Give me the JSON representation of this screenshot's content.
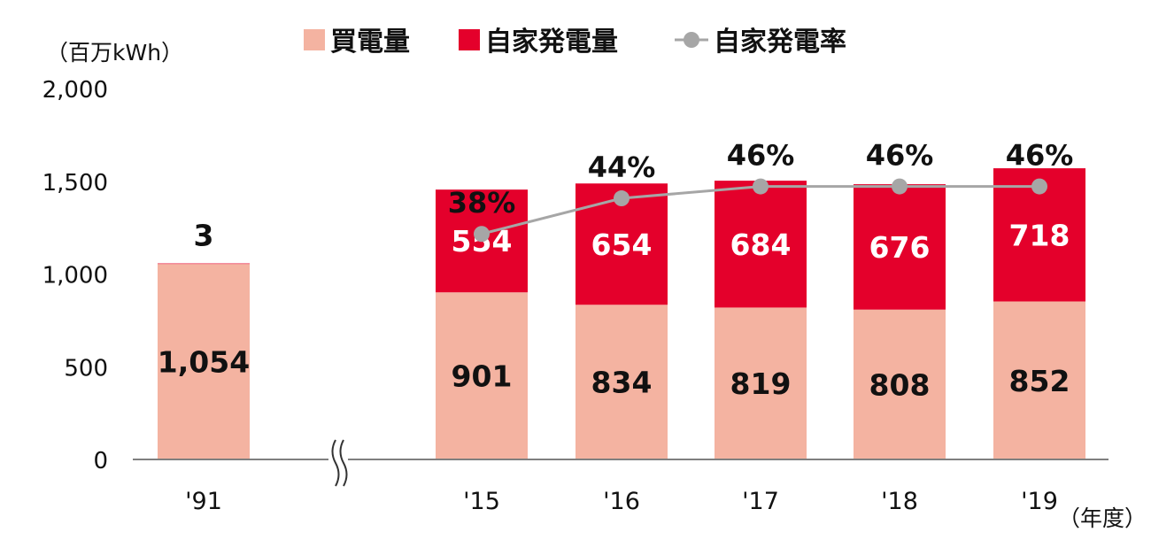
{
  "chart_data": {
    "type": "bar",
    "stacked": true,
    "unit_label": "（百万kWh）",
    "x_unit_label": "（年度）",
    "categories": [
      "'91",
      "'15",
      "'16",
      "'17",
      "'18",
      "'19"
    ],
    "series": [
      {
        "name": "買電量",
        "values": [
          1054,
          901,
          834,
          819,
          808,
          852
        ],
        "color": "#f4b3a1"
      },
      {
        "name": "自家発電量",
        "values": [
          3,
          554,
          654,
          684,
          676,
          718
        ],
        "color": "#e4002b"
      }
    ],
    "line_series": {
      "name": "自家発電率",
      "categories": [
        "'15",
        "'16",
        "'17",
        "'18",
        "'19"
      ],
      "values": [
        38,
        44,
        46,
        46,
        46
      ],
      "labels": [
        "38%",
        "44%",
        "46%",
        "46%",
        "46%"
      ],
      "color": "#a6a6a6"
    },
    "data_labels": {
      "purchased": [
        "1,054",
        "901",
        "834",
        "819",
        "808",
        "852"
      ],
      "self_generated": [
        "3",
        "554",
        "654",
        "684",
        "676",
        "718"
      ]
    },
    "y_ticks": [
      "0",
      "500",
      "1,000",
      "1,500",
      "2,000"
    ],
    "ylim": [
      0,
      2000
    ],
    "axis_break_after": "'91",
    "legend_position": "top",
    "grid": false
  }
}
